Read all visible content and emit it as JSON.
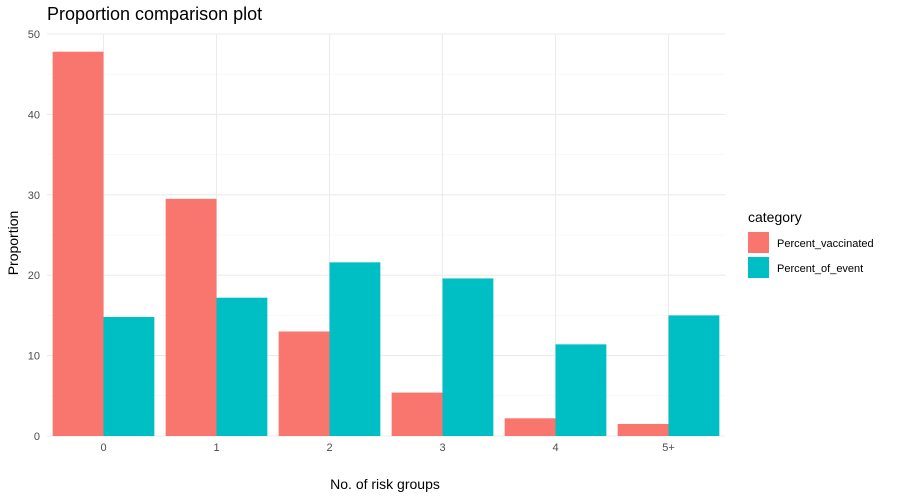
{
  "chart_data": {
    "type": "bar",
    "title": "Proportion comparison plot",
    "xlabel": "No. of risk groups",
    "ylabel": "Proportion",
    "categories": [
      "0",
      "1",
      "2",
      "3",
      "4",
      "5+"
    ],
    "ylim": [
      0,
      50
    ],
    "yticks": [
      0,
      10,
      20,
      30,
      40,
      50
    ],
    "grid": true,
    "legend": {
      "title": "category",
      "position": "right"
    },
    "series": [
      {
        "name": "Percent_vaccinated",
        "color": "#F8766D",
        "values": [
          47.8,
          29.5,
          13.0,
          5.4,
          2.2,
          1.5
        ]
      },
      {
        "name": "Percent_of_event",
        "color": "#00BFC4",
        "values": [
          14.8,
          17.2,
          21.6,
          19.6,
          11.4,
          15.0
        ]
      }
    ]
  }
}
